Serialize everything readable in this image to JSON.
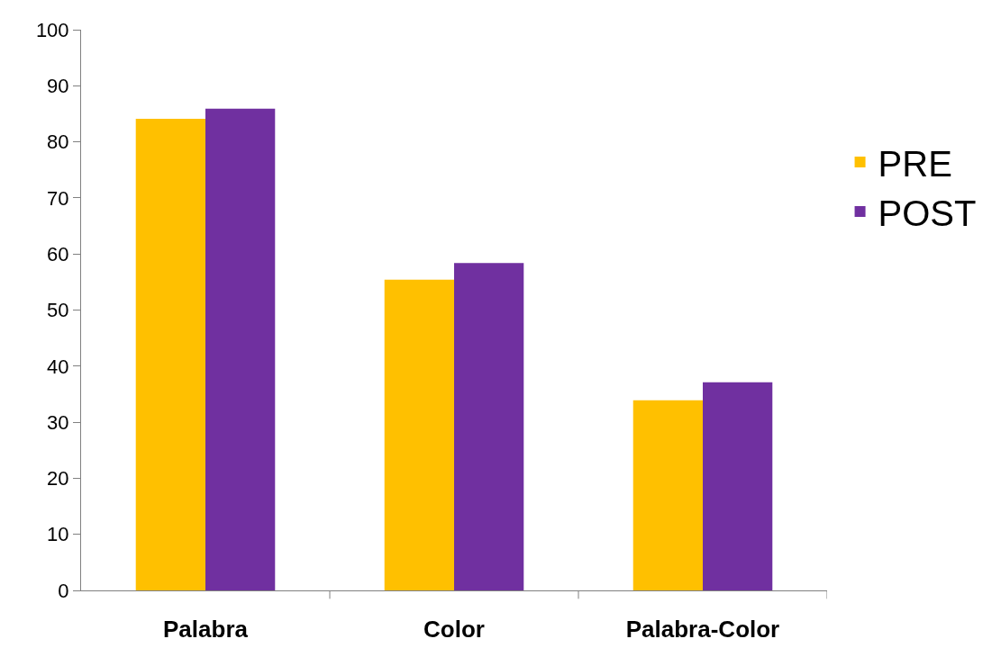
{
  "chart_data": {
    "type": "bar",
    "categories": [
      "Palabra",
      "Color",
      "Palabra-Color"
    ],
    "series": [
      {
        "name": "PRE",
        "color": "#ffc000",
        "values": [
          84.1,
          55.4,
          33.9
        ]
      },
      {
        "name": "POST",
        "color": "#7030a0",
        "values": [
          85.9,
          58.4,
          37.1
        ]
      }
    ],
    "ylim": [
      0,
      100
    ],
    "yticks": [
      0,
      10,
      20,
      30,
      40,
      50,
      60,
      70,
      80,
      90,
      100
    ],
    "grid": false,
    "legend": "right"
  }
}
